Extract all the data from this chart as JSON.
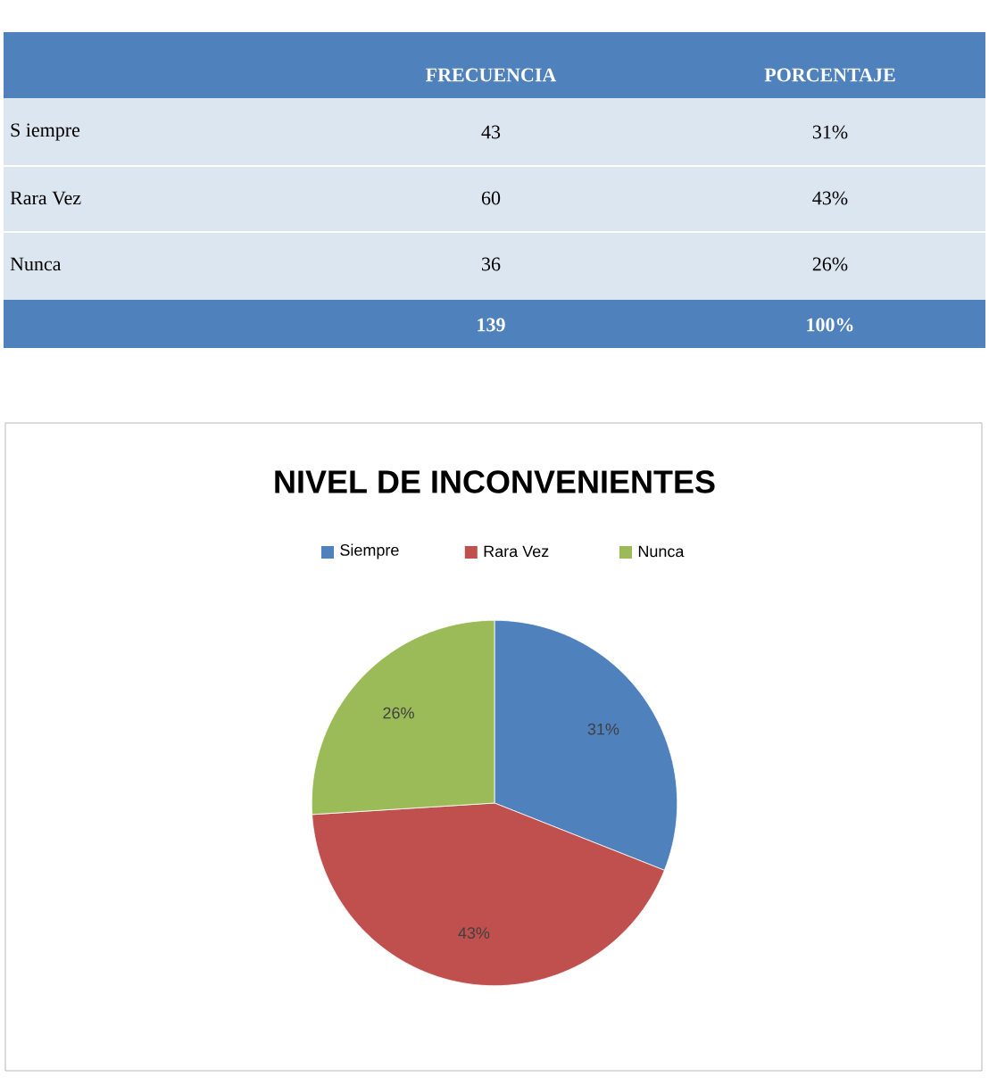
{
  "chart_data": {
    "type": "pie",
    "title": "NIVEL DE INCONVENIENTES",
    "categories": [
      "Siempre",
      "Rara Vez",
      "Nunca"
    ],
    "values": [
      31,
      43,
      26
    ],
    "colors": [
      "#4f81bd",
      "#c0504d",
      "#9bbb59"
    ],
    "value_labels": [
      "31%",
      "43%",
      "26%"
    ],
    "legend": "top",
    "annotations": [
      "FRECUENCIA",
      "PORCENTAJE",
      "S iempre",
      "43",
      "31%",
      "Rara Vez",
      "60",
      "43%",
      "Nunca",
      "36",
      "26%",
      "139",
      "100%"
    ]
  }
}
